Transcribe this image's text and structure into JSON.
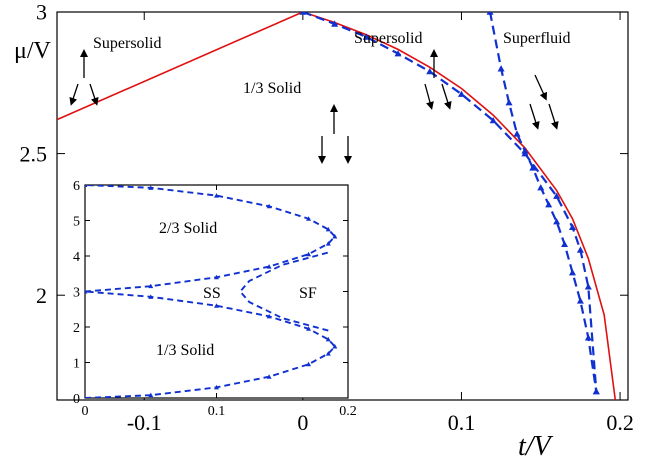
{
  "chart_data": [
    {
      "type": "line",
      "x_range": [
        -0.155,
        0.205
      ],
      "y_range": [
        1.63,
        3.0
      ],
      "xlabel": "t/V",
      "ylabel": "μ/V",
      "x_ticks": [
        -0.1,
        0,
        0.1,
        0.2
      ],
      "x_tick_labels": [
        "-0.1",
        "0",
        "0.1",
        "0.2"
      ],
      "y_ticks": [
        2,
        2.5,
        3
      ],
      "y_tick_labels": [
        "2",
        "2.5",
        "3"
      ],
      "annotations": [
        "Supersolid",
        "1/3 Solid",
        "Supersolid",
        "Superfluid"
      ],
      "series": [
        {
          "name": "",
          "color": "#e01010",
          "style": "solid",
          "x": [
            -0.155,
            0.0
          ],
          "y": [
            2.62,
            3.0
          ],
          "x2": [
            0.0,
            0.02,
            0.04,
            0.06,
            0.08,
            0.1,
            0.12,
            0.14,
            0.16,
            0.17,
            0.18,
            0.19,
            0.197
          ],
          "y2": [
            3.0,
            2.963,
            2.92,
            2.868,
            2.805,
            2.73,
            2.636,
            2.52,
            2.37,
            2.27,
            2.13,
            1.93,
            1.63
          ]
        },
        {
          "name": "",
          "color": "#1030d0",
          "style": "dashed",
          "marker": "triangle",
          "x": [
            0.0,
            0.02,
            0.04,
            0.06,
            0.08,
            0.1,
            0.12,
            0.14,
            0.16,
            0.17,
            0.175,
            0.18,
            0.185
          ],
          "y": [
            3.0,
            2.958,
            2.912,
            2.853,
            2.79,
            2.71,
            2.617,
            2.5,
            2.35,
            2.24,
            2.16,
            2.03,
            1.66
          ]
        },
        {
          "name": "",
          "color": "#1030d0",
          "style": "dashed",
          "marker": "triangle",
          "x": [
            0.118,
            0.125,
            0.13,
            0.135,
            0.14,
            0.145,
            0.15,
            0.155,
            0.16,
            0.165,
            0.17,
            0.175,
            0.18,
            0.185
          ],
          "y": [
            3.0,
            2.8,
            2.68,
            2.57,
            2.51,
            2.45,
            2.38,
            2.32,
            2.26,
            2.18,
            2.08,
            1.98,
            1.85,
            1.66
          ]
        }
      ]
    },
    {
      "type": "line",
      "x_range": [
        0,
        0.2
      ],
      "y_range": [
        0,
        6
      ],
      "x_ticks": [
        0,
        0.1,
        0.2
      ],
      "x_tick_labels": [
        "0",
        "0.1",
        "0.2"
      ],
      "y_ticks": [
        0,
        1,
        2,
        3,
        4,
        5,
        6
      ],
      "y_tick_labels": [
        "0",
        "1",
        "2",
        "3",
        "4",
        "5",
        "6"
      ],
      "annotations": [
        "2/3 Solid",
        "SS",
        "SF",
        "1/3 Solid"
      ],
      "series": [
        {
          "name": "",
          "color": "#1030d0",
          "style": "dashed",
          "marker": "triangle",
          "x": [
            0.0,
            0.05,
            0.1,
            0.14,
            0.17,
            0.185,
            0.19,
            0.185,
            0.17,
            0.14,
            0.1,
            0.05,
            0.0
          ],
          "y": [
            0.0,
            0.08,
            0.3,
            0.6,
            0.95,
            1.25,
            1.45,
            1.65,
            1.95,
            2.3,
            2.6,
            2.85,
            3.0
          ]
        },
        {
          "name": "",
          "color": "#1030d0",
          "style": "dashed",
          "marker": "triangle",
          "x": [
            0.0,
            0.05,
            0.1,
            0.14,
            0.17,
            0.185,
            0.19,
            0.185,
            0.17,
            0.14,
            0.1,
            0.05,
            0.0
          ],
          "y": [
            3.0,
            3.15,
            3.4,
            3.7,
            4.05,
            4.35,
            4.55,
            4.75,
            5.05,
            5.4,
            5.7,
            5.92,
            6.0
          ]
        },
        {
          "name": "",
          "color": "#1030d0",
          "style": "dashed",
          "marker": "none",
          "x": [
            0.185,
            0.15,
            0.125,
            0.118,
            0.125,
            0.15,
            0.185
          ],
          "y": [
            1.9,
            2.25,
            2.7,
            3.0,
            3.3,
            3.75,
            4.1
          ]
        }
      ]
    }
  ]
}
